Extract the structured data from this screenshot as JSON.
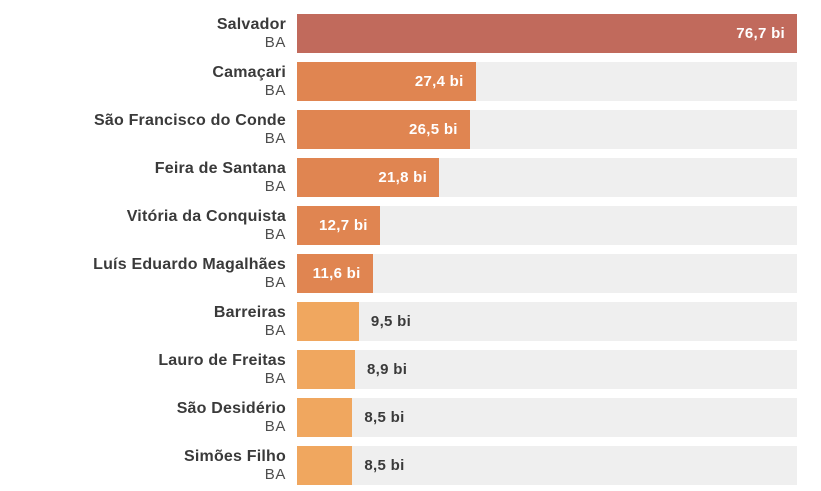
{
  "chart_data": {
    "type": "bar",
    "orientation": "horizontal",
    "title": "",
    "xlabel": "",
    "ylabel": "",
    "unit": "bi",
    "max_value": 76.7,
    "xlim": [
      0,
      76.7
    ],
    "grid": false,
    "legend": false,
    "categories": [
      "Salvador",
      "Camaçari",
      "São Francisco do Conde",
      "Feira de Santana",
      "Vitória da Conquista",
      "Luís Eduardo Magalhães",
      "Barreiras",
      "Lauro de Freitas",
      "São Desidério",
      "Simões Filho"
    ],
    "state_labels": [
      "BA",
      "BA",
      "BA",
      "BA",
      "BA",
      "BA",
      "BA",
      "BA",
      "BA",
      "BA"
    ],
    "values": [
      76.7,
      27.4,
      26.5,
      21.8,
      12.7,
      11.6,
      9.5,
      8.9,
      8.5,
      8.5
    ],
    "value_labels": [
      "76,7 bi",
      "27,4 bi",
      "26,5 bi",
      "21,8 bi",
      "12,7 bi",
      "11,6 bi",
      "9,5 bi",
      "8,9 bi",
      "8,5 bi",
      "8,5 bi"
    ],
    "bar_colors": [
      "#c16a5c",
      "#e08551",
      "#e08551",
      "#e08551",
      "#e08551",
      "#e08551",
      "#f0a75f",
      "#f0a75f",
      "#f0a75f",
      "#f0a75f"
    ],
    "value_label_position": [
      "inside",
      "inside",
      "inside",
      "inside",
      "inside",
      "inside",
      "outside",
      "outside",
      "outside",
      "outside"
    ],
    "colors": {
      "track": "#efefef",
      "inside_value_text": "#ffffff",
      "outside_value_text": "#3a3a3a",
      "city_text": "#3a3a3a",
      "state_text": "#4e4e4e",
      "background": "#ffffff"
    }
  }
}
